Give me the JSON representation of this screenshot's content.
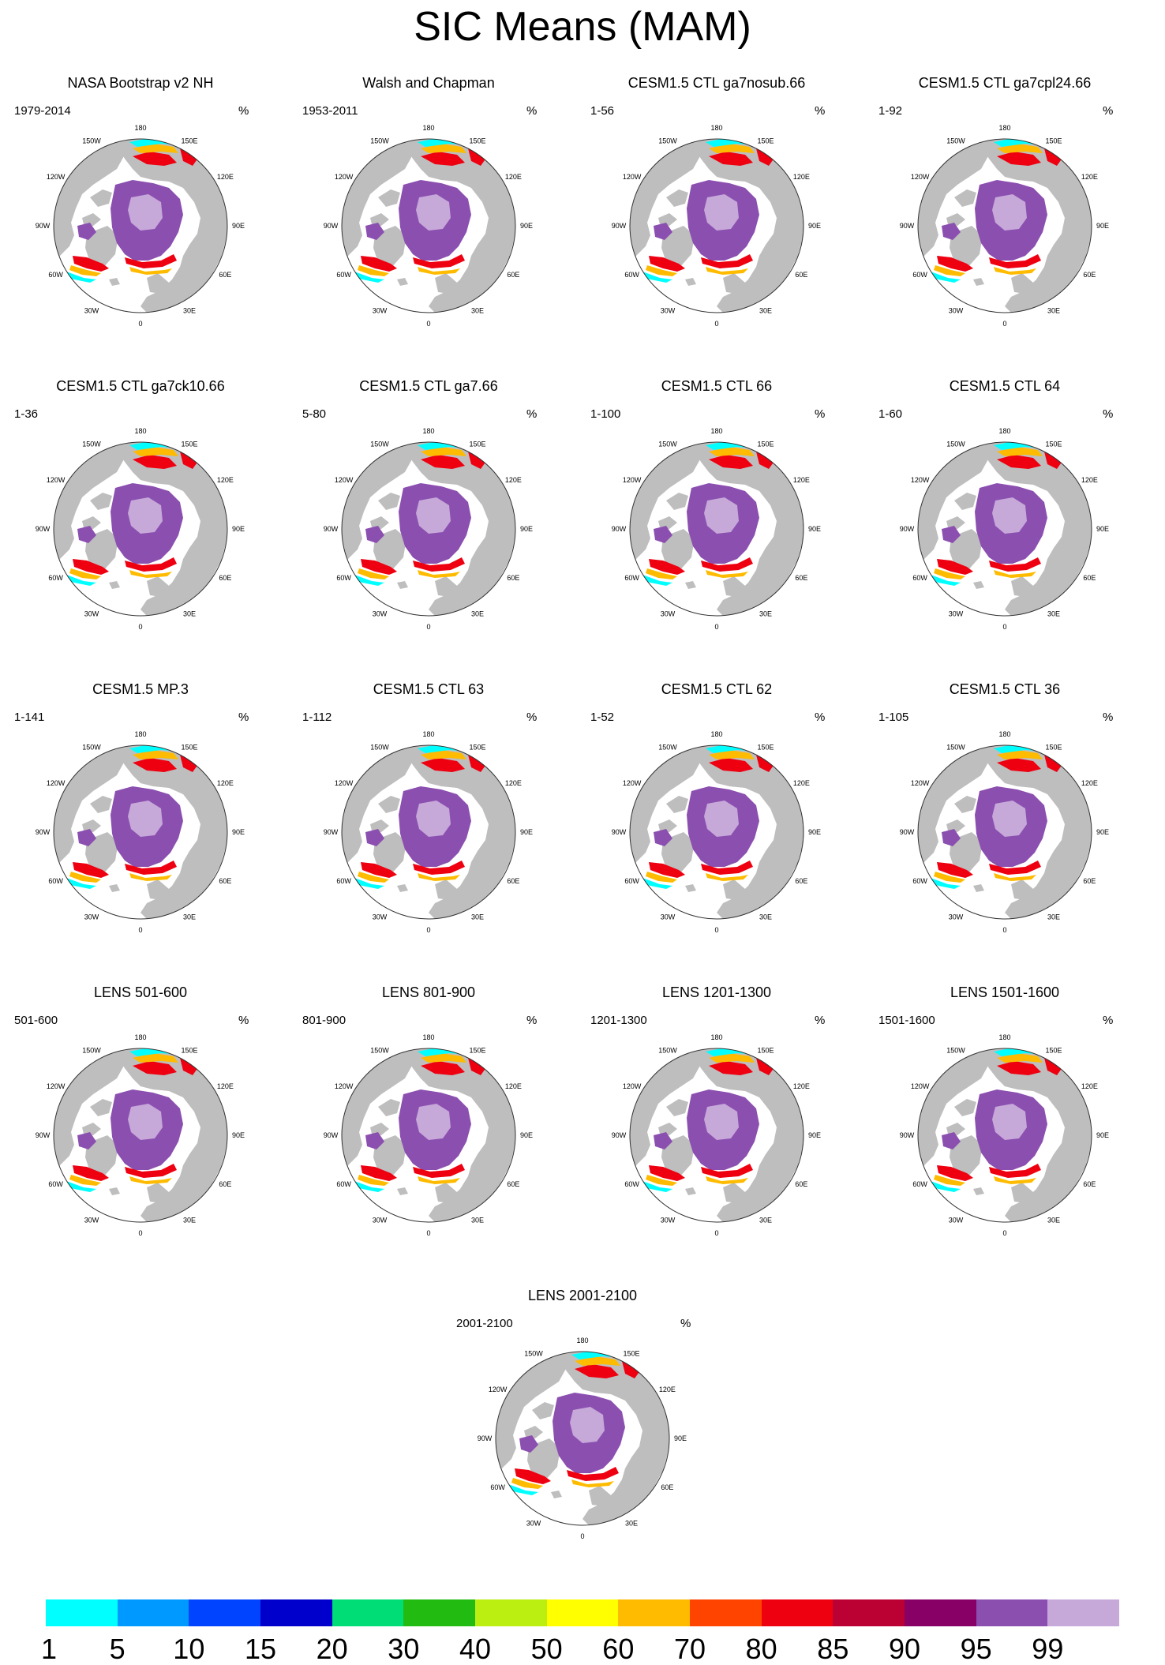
{
  "title": "SIC Means (MAM)",
  "panels": [
    {
      "title": "NASA Bootstrap v2 NH",
      "period": "1979-2014",
      "unit": "%"
    },
    {
      "title": "Walsh and Chapman",
      "period": "1953-2011",
      "unit": "%"
    },
    {
      "title": "CESM1.5 CTL ga7nosub.66",
      "period": "1-56",
      "unit": "%"
    },
    {
      "title": "CESM1.5 CTL ga7cpl24.66",
      "period": "1-92",
      "unit": "%"
    },
    {
      "title": "CESM1.5 CTL ga7ck10.66",
      "period": "1-36",
      "unit": ""
    },
    {
      "title": "CESM1.5 CTL ga7.66",
      "period": "5-80",
      "unit": "%"
    },
    {
      "title": "CESM1.5 CTL 66",
      "period": "1-100",
      "unit": "%"
    },
    {
      "title": "CESM1.5 CTL 64",
      "period": "1-60",
      "unit": "%"
    },
    {
      "title": "CESM1.5 MP.3",
      "period": "1-141",
      "unit": "%"
    },
    {
      "title": "CESM1.5 CTL 63",
      "period": "1-112",
      "unit": "%"
    },
    {
      "title": "CESM1.5 CTL 62",
      "period": "1-52",
      "unit": "%"
    },
    {
      "title": "CESM1.5 CTL 36",
      "period": "1-105",
      "unit": "%"
    },
    {
      "title": "LENS 501-600",
      "period": "501-600",
      "unit": "%"
    },
    {
      "title": "LENS 801-900",
      "period": "801-900",
      "unit": "%"
    },
    {
      "title": "LENS 1201-1300",
      "period": "1201-1300",
      "unit": "%"
    },
    {
      "title": "LENS 1501-1600",
      "period": "1501-1600",
      "unit": "%"
    },
    {
      "title": "LENS 2001-2100",
      "period": "2001-2100",
      "unit": "%"
    }
  ],
  "longitude_labels": [
    {
      "text": "180",
      "lon": 180
    },
    {
      "text": "150E",
      "lon": 150
    },
    {
      "text": "120E",
      "lon": 120
    },
    {
      "text": "90E",
      "lon": 90
    },
    {
      "text": "60E",
      "lon": 60
    },
    {
      "text": "30E",
      "lon": 30
    },
    {
      "text": "0",
      "lon": 0
    },
    {
      "text": "30W",
      "lon": -30
    },
    {
      "text": "60W",
      "lon": -60
    },
    {
      "text": "90W",
      "lon": -90
    },
    {
      "text": "120W",
      "lon": -120
    },
    {
      "text": "150W",
      "lon": -150
    }
  ],
  "colorbar": {
    "labels": [
      "1",
      "5",
      "10",
      "15",
      "20",
      "30",
      "40",
      "50",
      "60",
      "70",
      "80",
      "85",
      "90",
      "95",
      "99"
    ],
    "colors": [
      "#00ffff",
      "#0099ff",
      "#0044ff",
      "#0000cc",
      "#00dd77",
      "#22bb11",
      "#bbee11",
      "#ffff00",
      "#ffbb00",
      "#ff4400",
      "#ee0011",
      "#bb0033",
      "#880066",
      "#8b4fb0",
      "#c6a8d9"
    ]
  },
  "map_colors": {
    "land": "#bebebe",
    "ocean": "#ffffff",
    "ice_pack": "#8b4fb0",
    "ice_core": "#c6a8d9",
    "edge_hot": "#ee0011",
    "edge_warm": "#ffbb00",
    "edge_green": "#22bb11",
    "edge_cyan": "#00ffff"
  }
}
